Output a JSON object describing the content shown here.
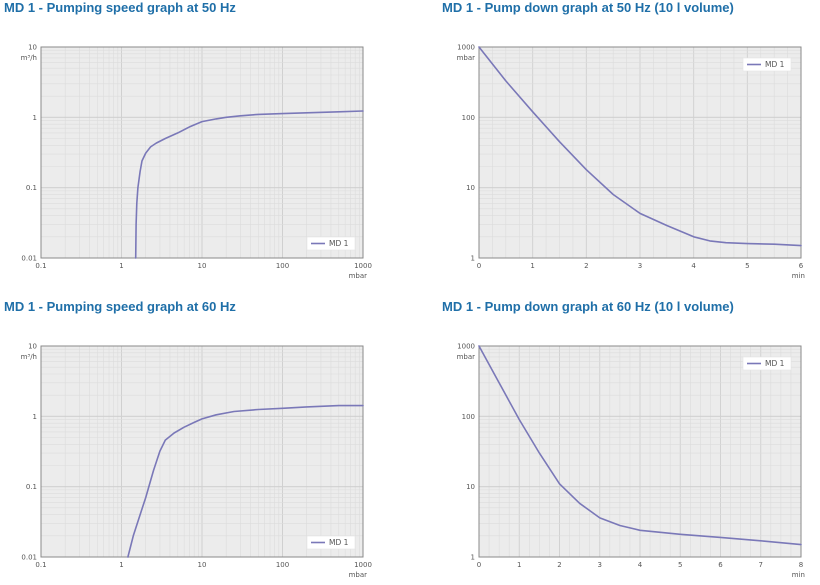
{
  "charts": {
    "p1": {
      "title": "MD 1 - Pumping speed graph at 50 Hz"
    },
    "p2": {
      "title": "MD 1 - Pump down graph at 50 Hz (10 l volume)"
    },
    "p3": {
      "title": "MD 1 - Pumping speed graph at 60 Hz"
    },
    "p4": {
      "title": "MD 1 - Pump down graph at 60 Hz (10 l volume)"
    }
  },
  "colors": {
    "plot_bg": "#ececec",
    "grid_minor": "#dcdcdc",
    "grid_major": "#d0d0d0",
    "frame": "#8a8a8a",
    "series": "#7a78b8",
    "title": "#1f6fa8"
  },
  "chart_data": [
    {
      "id": "p1",
      "type": "line",
      "title": "MD 1 - Pumping speed graph at 50 Hz",
      "x_scale": "log",
      "y_scale": "log",
      "xlim": [
        0.1,
        1000
      ],
      "ylim": [
        0.01,
        10
      ],
      "x_ticks": [
        "0.1",
        "1",
        "10",
        "100",
        "1000"
      ],
      "y_ticks": [
        "0.01",
        "0.1",
        "1",
        "10"
      ],
      "x_unit": "mbar",
      "y_unit": "m³/h",
      "grid": true,
      "legend": "bottom-right",
      "series": [
        {
          "name": "MD 1",
          "x": [
            1.5,
            1.52,
            1.55,
            1.6,
            1.7,
            1.8,
            2.0,
            2.3,
            2.7,
            3.5,
            5,
            7,
            10,
            15,
            20,
            30,
            50,
            100,
            200,
            500,
            1000
          ],
          "y": [
            0.01,
            0.03,
            0.06,
            0.1,
            0.17,
            0.24,
            0.31,
            0.38,
            0.43,
            0.5,
            0.6,
            0.73,
            0.87,
            0.95,
            1.0,
            1.05,
            1.1,
            1.13,
            1.16,
            1.2,
            1.23
          ]
        }
      ]
    },
    {
      "id": "p2",
      "type": "line",
      "title": "MD 1 - Pump down graph at 50 Hz (10 l volume)",
      "x_scale": "linear",
      "y_scale": "log",
      "xlim": [
        0,
        6
      ],
      "ylim": [
        1,
        1000
      ],
      "x_ticks": [
        "0",
        "1",
        "2",
        "3",
        "4",
        "5",
        "6"
      ],
      "y_ticks": [
        "1",
        "10",
        "100",
        "1000"
      ],
      "x_unit": "min",
      "y_unit": "mbar",
      "grid": true,
      "legend": "top-right",
      "series": [
        {
          "name": "MD 1",
          "x": [
            0,
            0.5,
            1,
            1.5,
            2,
            2.5,
            3,
            3.5,
            4,
            4.3,
            4.6,
            5,
            5.5,
            6
          ],
          "y": [
            1000,
            330,
            120,
            45,
            18,
            8,
            4.3,
            2.9,
            2.0,
            1.75,
            1.65,
            1.6,
            1.57,
            1.5
          ]
        }
      ]
    },
    {
      "id": "p3",
      "type": "line",
      "title": "MD 1 - Pumping speed graph at 60 Hz",
      "x_scale": "log",
      "y_scale": "log",
      "xlim": [
        0.1,
        1000
      ],
      "ylim": [
        0.01,
        10
      ],
      "x_ticks": [
        "0.1",
        "1",
        "10",
        "100",
        "1000"
      ],
      "y_ticks": [
        "0.01",
        "0.1",
        "1",
        "10"
      ],
      "x_unit": "mbar",
      "y_unit": "m³/h",
      "grid": true,
      "legend": "bottom-right",
      "series": [
        {
          "name": "MD 1",
          "x": [
            1.2,
            1.4,
            1.7,
            2.0,
            2.5,
            3.0,
            3.5,
            4.5,
            6,
            8,
            10,
            15,
            25,
            50,
            100,
            200,
            500,
            1000
          ],
          "y": [
            0.01,
            0.02,
            0.04,
            0.07,
            0.17,
            0.32,
            0.46,
            0.58,
            0.7,
            0.82,
            0.92,
            1.05,
            1.17,
            1.25,
            1.3,
            1.36,
            1.42,
            1.42
          ]
        }
      ]
    },
    {
      "id": "p4",
      "type": "line",
      "title": "MD 1 - Pump down graph at 60 Hz (10 l volume)",
      "x_scale": "linear",
      "y_scale": "log",
      "xlim": [
        0,
        8
      ],
      "ylim": [
        1,
        1000
      ],
      "x_ticks": [
        "0",
        "1",
        "2",
        "3",
        "4",
        "5",
        "6",
        "7",
        "8"
      ],
      "y_ticks": [
        "1",
        "10",
        "100",
        "1000"
      ],
      "x_unit": "min",
      "y_unit": "mbar",
      "grid": true,
      "legend": "top-right",
      "series": [
        {
          "name": "MD 1",
          "x": [
            0,
            0.5,
            1,
            1.5,
            2,
            2.5,
            3,
            3.5,
            4,
            5,
            6,
            7,
            8
          ],
          "y": [
            1000,
            300,
            90,
            30,
            11,
            5.8,
            3.6,
            2.8,
            2.4,
            2.1,
            1.9,
            1.7,
            1.5
          ]
        }
      ]
    }
  ]
}
